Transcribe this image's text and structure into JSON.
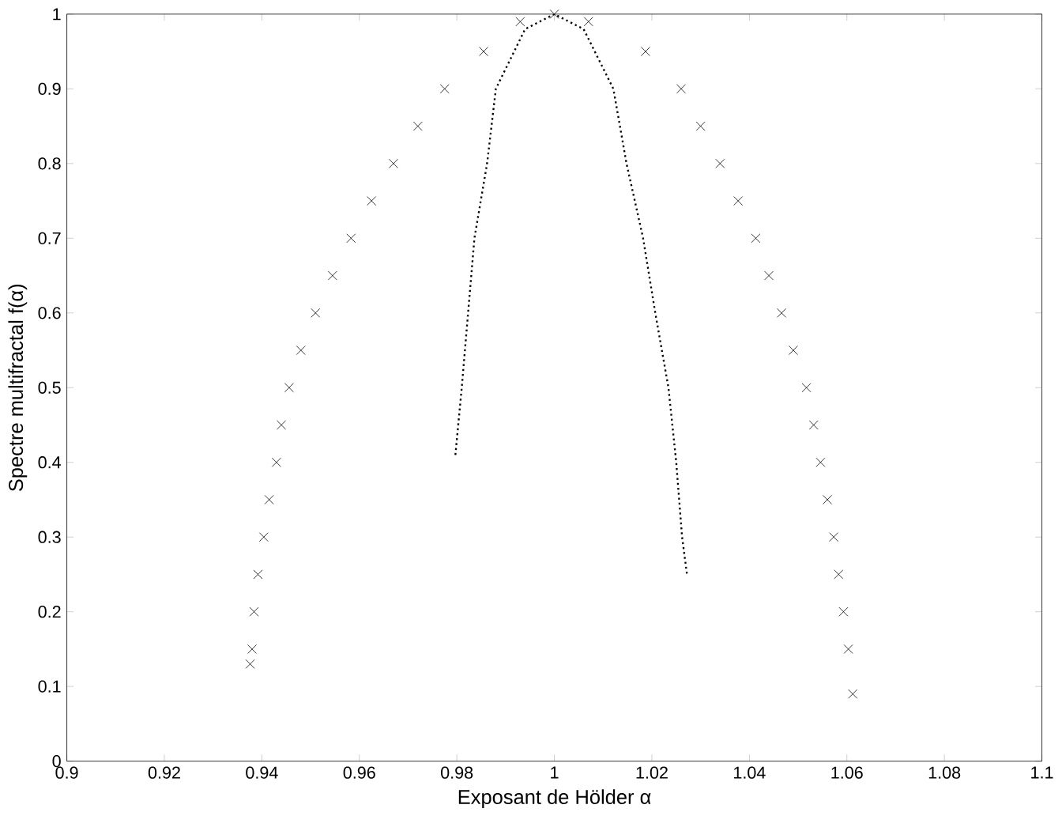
{
  "chart_data": {
    "type": "scatter",
    "xlabel": "Exposant de Hölder α",
    "ylabel": "Spectre multifractal f(α)",
    "xlim": [
      0.9,
      1.1
    ],
    "ylim": [
      0,
      1
    ],
    "xticks": [
      0.9,
      0.92,
      0.94,
      0.96,
      0.98,
      1,
      1.02,
      1.04,
      1.06,
      1.08,
      1.1
    ],
    "yticks": [
      0,
      0.1,
      0.2,
      0.3,
      0.4,
      0.5,
      0.6,
      0.7,
      0.8,
      0.9,
      1
    ],
    "series": [
      {
        "marker": "cross",
        "color": "#000000",
        "x": [
          0.9376,
          0.938,
          0.9384,
          0.9392,
          0.9404,
          0.9415,
          0.943,
          0.944,
          0.9456,
          0.948,
          0.951,
          0.9545,
          0.9583,
          0.9625,
          0.967,
          0.972,
          0.9775,
          0.9855,
          0.993,
          1.0,
          1.007,
          1.0187,
          1.026,
          1.03,
          1.034,
          1.0377,
          1.0413,
          1.044,
          1.0466,
          1.049,
          1.0517,
          1.0532,
          1.0546,
          1.056,
          1.0573,
          1.0583,
          1.0593,
          1.0603,
          1.0612
        ],
        "values": [
          0.13,
          0.15,
          0.2,
          0.25,
          0.3,
          0.35,
          0.4,
          0.45,
          0.5,
          0.55,
          0.6,
          0.65,
          0.7,
          0.75,
          0.8,
          0.85,
          0.9,
          0.95,
          0.99,
          1.0,
          0.99,
          0.95,
          0.9,
          0.85,
          0.8,
          0.75,
          0.7,
          0.65,
          0.6,
          0.55,
          0.5,
          0.45,
          0.4,
          0.35,
          0.3,
          0.25,
          0.2,
          0.15,
          0.09
        ]
      },
      {
        "type": "line",
        "line_style": "dotted",
        "color": "#000000",
        "x": [
          0.9797,
          0.981,
          0.9823,
          0.9836,
          0.9862,
          0.988,
          0.994,
          1.0,
          1.006,
          1.0121,
          1.0148,
          1.0182,
          1.0207,
          1.0234,
          1.025,
          1.0262,
          1.0272
        ],
        "values": [
          0.41,
          0.5,
          0.6,
          0.7,
          0.8,
          0.9,
          0.98,
          1.0,
          0.98,
          0.9,
          0.8,
          0.7,
          0.6,
          0.5,
          0.4,
          0.3,
          0.25
        ]
      }
    ]
  }
}
